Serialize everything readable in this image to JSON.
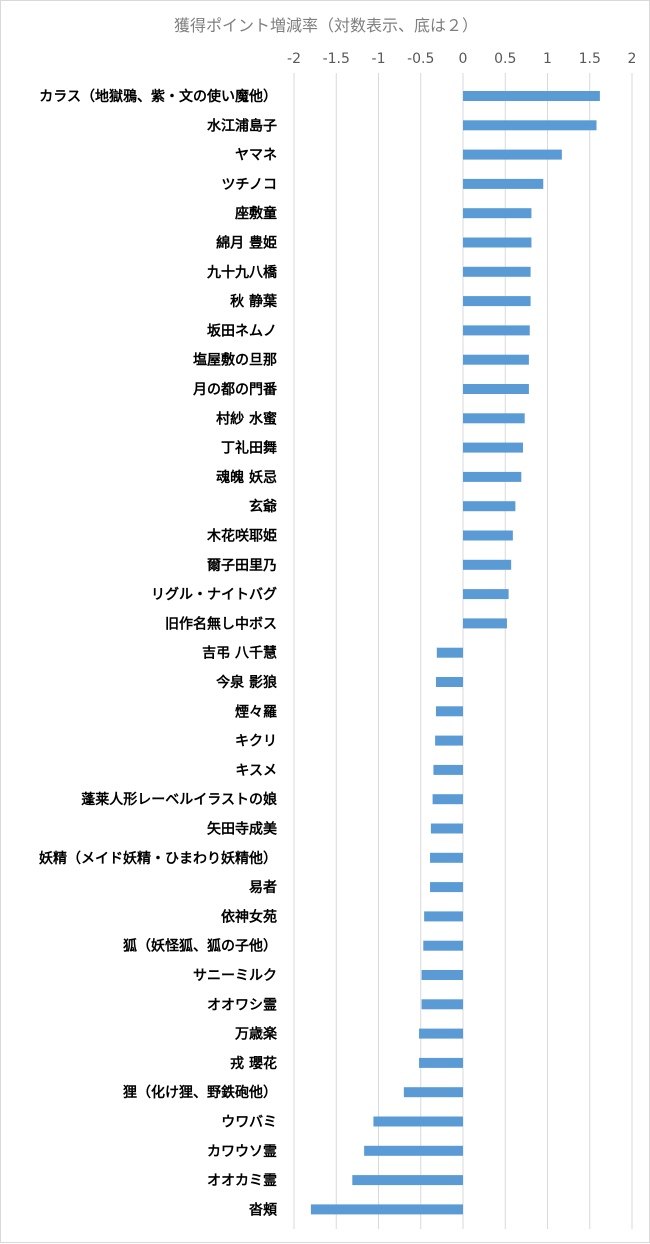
{
  "chart_data": {
    "type": "bar",
    "orientation": "horizontal",
    "title": "獲得ポイント増減率（対数表示、底は２）",
    "xlabel": "",
    "ylabel": "",
    "xlim": [
      -2,
      2
    ],
    "x_ticks": [
      "-2",
      "-1.5",
      "-1",
      "-0.5",
      "0",
      "0.5",
      "1",
      "1.5",
      "2"
    ],
    "x_tick_values": [
      -2,
      -1.5,
      -1,
      -0.5,
      0,
      0.5,
      1,
      1.5,
      2
    ],
    "grid": "vertical",
    "legend": "none",
    "bar_color": "#5b9bd5",
    "categories": [
      "カラス（地獄鴉、紫・文の使い魔他）",
      "水江浦島子",
      "ヤマネ",
      "ツチノコ",
      "座敷童",
      "綿月 豊姫",
      "九十九八橋",
      "秋 静葉",
      "坂田ネムノ",
      "塩屋敷の旦那",
      "月の都の門番",
      "村紗 水蜜",
      "丁礼田舞",
      "魂魄 妖忌",
      "玄爺",
      "木花咲耶姫",
      "爾子田里乃",
      "リグル・ナイトバグ",
      "旧作名無し中ボス",
      "吉弔 八千慧",
      "今泉 影狼",
      "煙々羅",
      "キクリ",
      "キスメ",
      "蓬莱人形レーベルイラストの娘",
      "矢田寺成美",
      "妖精（メイド妖精・ひまわり妖精他）",
      "易者",
      "依神女苑",
      "狐（妖怪狐、狐の子他）",
      "サニーミルク",
      "オオワシ霊",
      "万歳楽",
      "戎 瓔花",
      "狸（化け狸、野鉄砲他）",
      "ウワバミ",
      "カワウソ霊",
      "オオカミ霊",
      "沓頬"
    ],
    "values": [
      1.62,
      1.58,
      1.17,
      0.95,
      0.81,
      0.81,
      0.8,
      0.8,
      0.79,
      0.78,
      0.78,
      0.73,
      0.71,
      0.69,
      0.62,
      0.59,
      0.57,
      0.54,
      0.52,
      -0.31,
      -0.32,
      -0.32,
      -0.33,
      -0.35,
      -0.36,
      -0.38,
      -0.39,
      -0.39,
      -0.46,
      -0.47,
      -0.49,
      -0.49,
      -0.52,
      -0.52,
      -0.7,
      -1.06,
      -1.17,
      -1.31,
      -1.8
    ]
  }
}
